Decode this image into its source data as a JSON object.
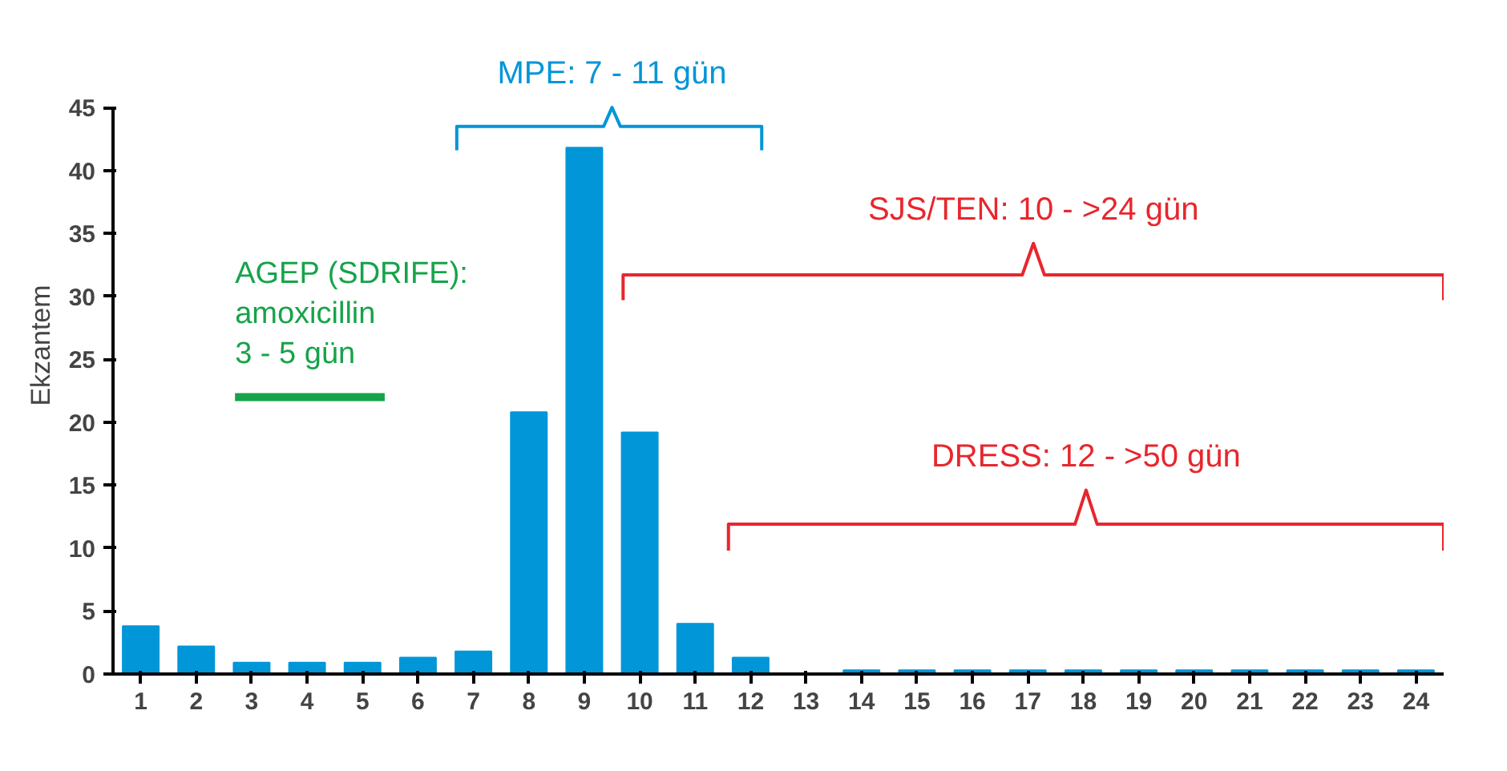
{
  "chart_data": {
    "type": "bar",
    "ylabel": "Ekzantem",
    "x": [
      1,
      2,
      3,
      4,
      5,
      6,
      7,
      8,
      9,
      10,
      11,
      12,
      13,
      14,
      15,
      16,
      17,
      18,
      19,
      20,
      21,
      22,
      23,
      24
    ],
    "series": [
      {
        "color": "#0096d8",
        "values": [
          3.8,
          2.2,
          0.9,
          0.9,
          0.9,
          1.3,
          1.8,
          20.8,
          41.8,
          19.2,
          4.0,
          1.3,
          null,
          0.3,
          0.3,
          0.3,
          0.3,
          0.3,
          0.3,
          0.3,
          0.3,
          0.3,
          0.3,
          0.3
        ]
      },
      {
        "type": "line",
        "name": "AGEP (SDRIFE):\namoxicillin\n3 - 5 gün",
        "color": "#17a34a",
        "x": [
          2.7,
          5.4
        ],
        "values": [
          22,
          22
        ]
      },
      {
        "type": "line",
        "name": "MPE: 7 - 11 gün",
        "color": "#0096d8",
        "x": [
          6.7,
          6.7,
          9.35,
          9.5,
          9.65,
          12.2,
          12.2
        ],
        "values": [
          41.6,
          43.5,
          43.5,
          45,
          43.5,
          43.5,
          41.6
        ]
      },
      {
        "type": "line",
        "name": "SJS/TEN: 10 - >24 gün",
        "color": "#e8262d",
        "x": [
          9.7,
          9.7,
          16.9,
          17.1,
          17.3,
          24.5,
          24.5
        ],
        "values": [
          29.7,
          31.7,
          31.7,
          34.2,
          31.7,
          31.7,
          29.7
        ]
      },
      {
        "type": "line",
        "name": "DRESS: 12 - >50 gün",
        "color": "#e8262d",
        "x": [
          11.6,
          11.6,
          17.85,
          18.05,
          18.25,
          24.5,
          24.5
        ],
        "values": [
          9.8,
          11.9,
          11.9,
          14.6,
          11.9,
          11.9,
          9.8
        ]
      }
    ],
    "xlim": [
      0.5,
      24.5
    ],
    "xticks": [
      1,
      2,
      3,
      4,
      5,
      6,
      7,
      8,
      9,
      10,
      11,
      12,
      13,
      14,
      15,
      16,
      17,
      18,
      19,
      20,
      21,
      22,
      23,
      24
    ],
    "ylim": [
      0,
      45
    ],
    "yticks": [
      0,
      5,
      10,
      15,
      20,
      25,
      30,
      35,
      40,
      45
    ],
    "grid": false
  }
}
